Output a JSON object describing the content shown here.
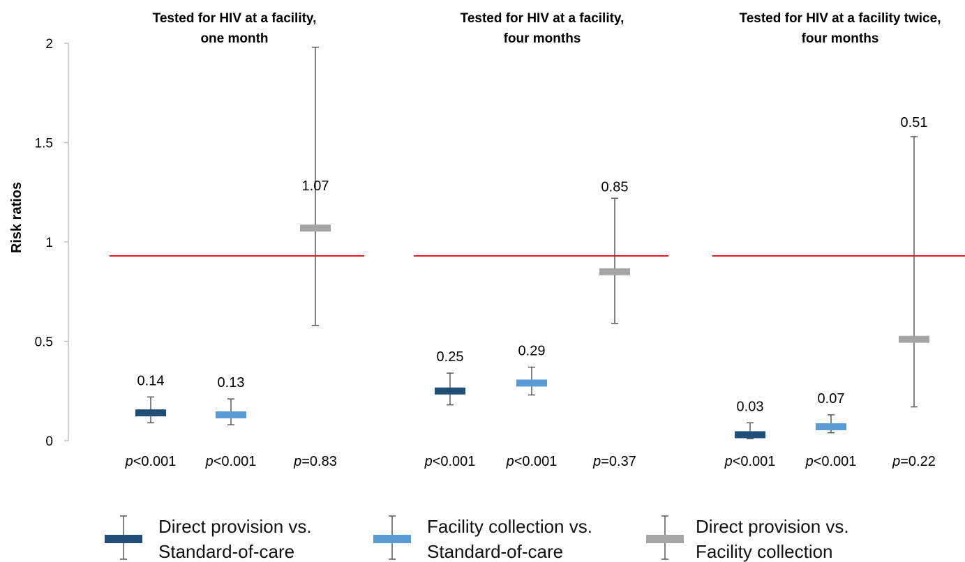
{
  "chart_data": {
    "type": "error-bar",
    "ylabel": "Risk ratios",
    "ylim": [
      0,
      2
    ],
    "yticks": [
      "0",
      "0.5",
      "1",
      "1.5",
      "2"
    ],
    "reference_line": {
      "value": 0.93,
      "color": "#e8161b"
    },
    "series": [
      {
        "name_lines": [
          "Direct provision vs.",
          "Standard-of-care"
        ],
        "color": "#1f4e79"
      },
      {
        "name_lines": [
          "Facility collection vs.",
          "Standard-of-care"
        ],
        "color": "#5b9bd5"
      },
      {
        "name_lines": [
          "Direct provision vs.",
          "Facility collection"
        ],
        "color": "#a5a5a5"
      }
    ],
    "panels": [
      {
        "title_lines": [
          "Tested for HIV at a facility,",
          "one month"
        ],
        "points": [
          {
            "series": 0,
            "value": 0.14,
            "low": 0.09,
            "high": 0.22,
            "label": "0.14",
            "p_prefix": "p",
            "p_rest": "<0.001"
          },
          {
            "series": 1,
            "value": 0.13,
            "low": 0.08,
            "high": 0.21,
            "label": "0.13",
            "p_prefix": "p",
            "p_rest": "<0.001"
          },
          {
            "series": 2,
            "value": 1.07,
            "low": 0.58,
            "high": 1.98,
            "label": "1.07",
            "p_prefix": "p",
            "p_rest": "=0.83"
          }
        ]
      },
      {
        "title_lines": [
          "Tested for HIV at a facility,",
          "four months"
        ],
        "points": [
          {
            "series": 0,
            "value": 0.25,
            "low": 0.18,
            "high": 0.34,
            "label": "0.25",
            "p_prefix": "p",
            "p_rest": "<0.001"
          },
          {
            "series": 1,
            "value": 0.29,
            "low": 0.23,
            "high": 0.37,
            "label": "0.29",
            "p_prefix": "p",
            "p_rest": "<0.001"
          },
          {
            "series": 2,
            "value": 0.85,
            "low": 0.59,
            "high": 1.22,
            "label": "0.85",
            "p_prefix": "p",
            "p_rest": "=0.37"
          }
        ]
      },
      {
        "title_lines": [
          "Tested for HIV at a facility twice,",
          "four months"
        ],
        "points": [
          {
            "series": 0,
            "value": 0.03,
            "low": 0.01,
            "high": 0.09,
            "label": "0.03",
            "p_prefix": "p",
            "p_rest": "<0.001"
          },
          {
            "series": 1,
            "value": 0.07,
            "low": 0.04,
            "high": 0.13,
            "label": "0.07",
            "p_prefix": "p",
            "p_rest": "<0.001"
          },
          {
            "series": 2,
            "value": 0.51,
            "low": 0.17,
            "high": 1.53,
            "label": "0.51",
            "p_prefix": "p",
            "p_rest": "=0.22"
          }
        ]
      }
    ]
  }
}
